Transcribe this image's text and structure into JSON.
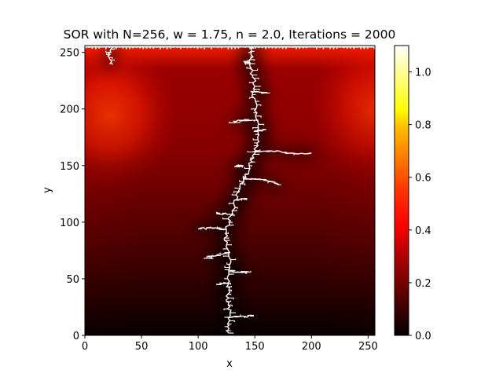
{
  "chart_data": {
    "type": "heatmap",
    "title": "SOR with N=256, w = 1.75, n = 2.0, Iterations = 2000",
    "xlabel": "x",
    "ylabel": "y",
    "xlim": [
      0,
      256
    ],
    "ylim": [
      0,
      256
    ],
    "x_ticks": [
      0,
      50,
      100,
      150,
      200,
      250
    ],
    "y_ticks": [
      0,
      50,
      100,
      150,
      200,
      250
    ],
    "x_tick_labels": [
      "0",
      "50",
      "100",
      "150",
      "200",
      "250"
    ],
    "y_tick_labels": [
      "0",
      "50",
      "100",
      "150",
      "200",
      "250"
    ],
    "colormap": "hot",
    "colorbar": {
      "vmin": 0.0,
      "vmax": 1.1,
      "ticks": [
        0.0,
        0.2,
        0.4,
        0.6,
        0.8,
        1.0
      ],
      "tick_labels": [
        "0.0",
        "0.2",
        "0.4",
        "0.6",
        "0.8",
        "1.0"
      ]
    },
    "cluster_color": "#ffffff",
    "cluster_path": [
      [
        127,
        2
      ],
      [
        126,
        10
      ],
      [
        128,
        20
      ],
      [
        125,
        30
      ],
      [
        127,
        40
      ],
      [
        126,
        50
      ],
      [
        128,
        60
      ],
      [
        127,
        70
      ],
      [
        125,
        80
      ],
      [
        124,
        90
      ],
      [
        127,
        100
      ],
      [
        130,
        110
      ],
      [
        134,
        120
      ],
      [
        137,
        130
      ],
      [
        142,
        140
      ],
      [
        145,
        150
      ],
      [
        149,
        160
      ],
      [
        152,
        170
      ],
      [
        153,
        180
      ],
      [
        152,
        190
      ],
      [
        151,
        200
      ],
      [
        149,
        210
      ],
      [
        150,
        220
      ],
      [
        148,
        230
      ],
      [
        146,
        240
      ],
      [
        147,
        250
      ],
      [
        148,
        255
      ]
    ],
    "cluster_branches": [
      [
        [
          148,
          162
        ],
        [
          165,
          163
        ],
        [
          182,
          161
        ],
        [
          200,
          161
        ]
      ],
      [
        [
          140,
          138
        ],
        [
          152,
          138
        ],
        [
          164,
          136
        ],
        [
          170,
          133
        ]
      ],
      [
        [
          124,
          94
        ],
        [
          112,
          95
        ],
        [
          100,
          94
        ]
      ],
      [
        [
          125,
          72
        ],
        [
          113,
          70
        ],
        [
          110,
          68
        ]
      ],
      [
        [
          126,
          58
        ],
        [
          136,
          56
        ],
        [
          142,
          56
        ]
      ],
      [
        [
          127,
          16
        ],
        [
          140,
          17
        ],
        [
          146,
          17
        ]
      ],
      [
        [
          148,
          190
        ],
        [
          136,
          190
        ],
        [
          132,
          188
        ]
      ],
      [
        [
          150,
          215
        ],
        [
          158,
          214
        ]
      ],
      [
        [
          22,
          240
        ],
        [
          22,
          248
        ],
        [
          25,
          255
        ]
      ],
      [
        [
          149,
          180
        ],
        [
          160,
          182
        ]
      ],
      [
        [
          134,
          120
        ],
        [
          143,
          121
        ]
      ],
      [
        [
          126,
          46
        ],
        [
          116,
          45
        ]
      ],
      [
        [
          128,
          107
        ],
        [
          116,
          108
        ]
      ],
      [
        [
          140,
          150
        ],
        [
          132,
          149
        ]
      ],
      [
        [
          146,
          240
        ],
        [
          140,
          242
        ]
      ]
    ],
    "boundary_row_y": 255
  }
}
